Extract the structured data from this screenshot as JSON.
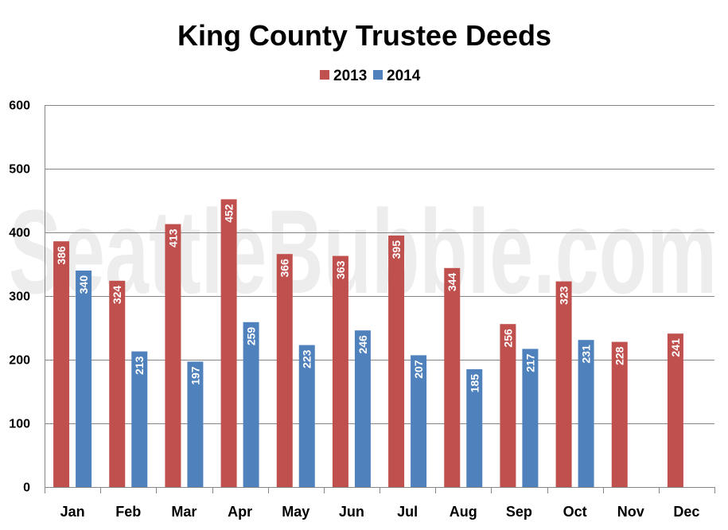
{
  "watermark": "SeattleBubble.com",
  "colors": {
    "series_2013": "#c0504d",
    "series_2014": "#4f81bd",
    "grid": "#868686",
    "axis": "#868686"
  },
  "chart_data": {
    "type": "bar",
    "title": "King County Trustee Deeds",
    "xlabel": "",
    "ylabel": "",
    "categories": [
      "Jan",
      "Feb",
      "Mar",
      "Apr",
      "May",
      "Jun",
      "Jul",
      "Aug",
      "Sep",
      "Oct",
      "Nov",
      "Dec"
    ],
    "series": [
      {
        "name": "2013",
        "values": [
          386,
          324,
          413,
          452,
          366,
          363,
          395,
          344,
          256,
          323,
          228,
          241
        ]
      },
      {
        "name": "2014",
        "values": [
          340,
          213,
          197,
          259,
          223,
          246,
          207,
          185,
          217,
          231,
          null,
          null
        ]
      }
    ],
    "ylim": [
      0,
      600
    ],
    "yticks": [
      0,
      100,
      200,
      300,
      400,
      500,
      600
    ],
    "grid": true,
    "legend_position": "top-center",
    "data_labels": true
  }
}
